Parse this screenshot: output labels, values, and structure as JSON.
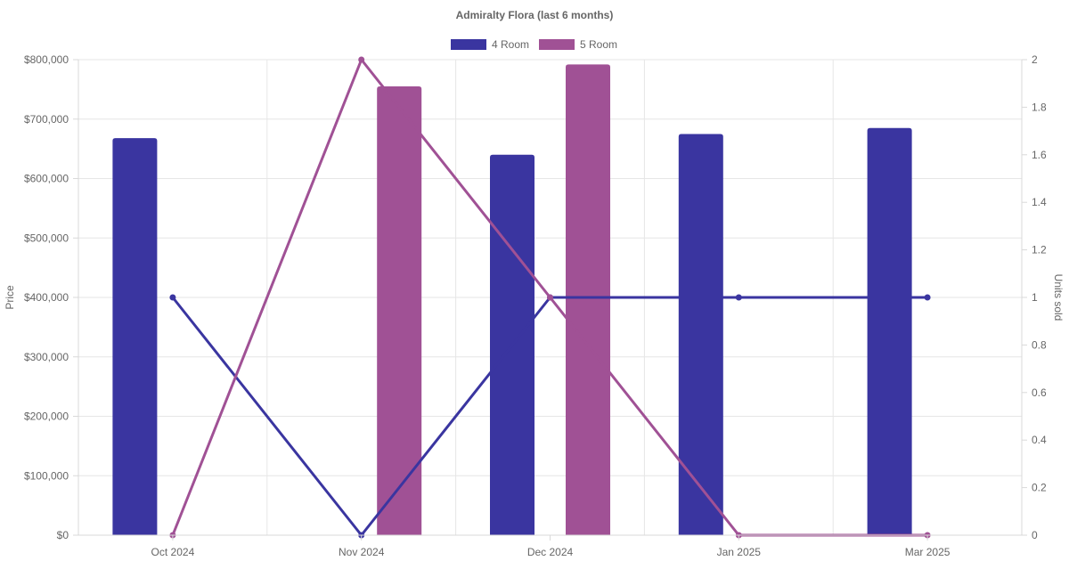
{
  "chart_data": {
    "type": "bar",
    "title": "Admiralty Flora (last 6 months)",
    "categories": [
      "Oct 2024",
      "Nov 2024",
      "Dec 2024",
      "Jan 2025",
      "Mar 2025"
    ],
    "series": [
      {
        "name": "4 Room",
        "color": "#3a35a0",
        "values": [
          668000,
          null,
          640000,
          675000,
          685000
        ],
        "units_sold": [
          1,
          0,
          1,
          1,
          1
        ]
      },
      {
        "name": "5 Room",
        "color": "#a05195",
        "values": [
          null,
          755000,
          792000,
          null,
          null
        ],
        "units_sold": [
          0,
          2,
          1,
          0,
          0
        ]
      }
    ],
    "y_left": {
      "label": "Price",
      "range": [
        0,
        800000
      ],
      "ticks": [
        "$0",
        "$100,000",
        "$200,000",
        "$300,000",
        "$400,000",
        "$500,000",
        "$600,000",
        "$700,000",
        "$800,000"
      ]
    },
    "y_right": {
      "label": "Units sold",
      "range": [
        0,
        2
      ],
      "ticks": [
        "0",
        "0.2",
        "0.4",
        "0.6",
        "0.8",
        "1",
        "1.2",
        "1.4",
        "1.6",
        "1.8",
        "2"
      ]
    },
    "legend_position": "top-center",
    "grid": true
  }
}
